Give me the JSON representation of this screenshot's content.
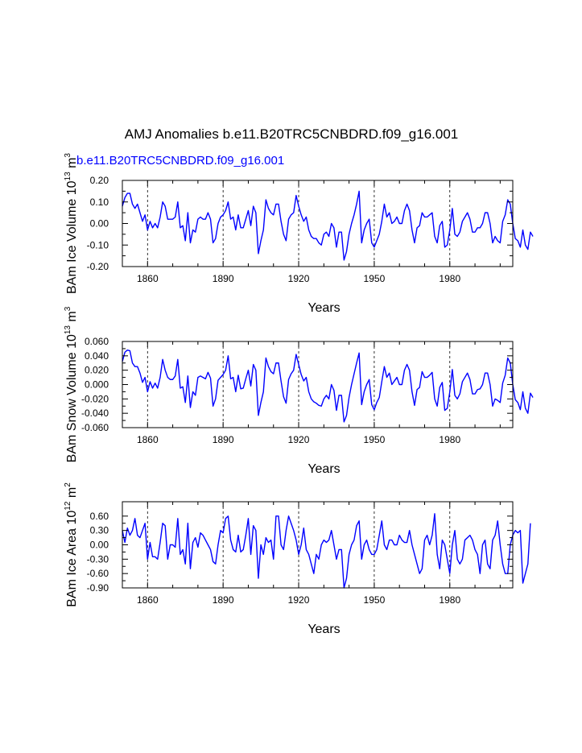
{
  "title": "AMJ Anomalies b.e11.B20TRC5CNBDRD.f09_g16.001",
  "case_label": "b.e11.B20TRC5CNBDRD.f09_g16.001",
  "colors": {
    "line": "#0000ff",
    "case_label": "#0000ff",
    "axis": "#000000"
  },
  "chart_data": [
    {
      "type": "line",
      "ylabel_prefix": "BAm Ice Volume 10",
      "ylabel_exp": "13",
      "ylabel_unit": "m",
      "ylabel_unit_exp": "3",
      "xlabel": "Years",
      "xlim": [
        1850,
        2005
      ],
      "ylim": [
        -0.2,
        0.2
      ],
      "x_ticks": [
        1860,
        1890,
        1920,
        1950,
        1980
      ],
      "x_tick_labels": [
        "1860",
        "1890",
        "1920",
        "1950",
        "1980"
      ],
      "y_ticks": [
        -0.2,
        -0.1,
        0.0,
        0.1,
        0.2
      ],
      "y_tick_labels": [
        "-0.20",
        "-0.10",
        "0.00",
        "0.10",
        "0.20"
      ],
      "vgrid_dashed": [
        1860,
        1890,
        1920,
        1950,
        1980
      ],
      "series": [
        {
          "name": "b.e11.B20TRC5CNBDRD.f09_g16.001",
          "x_start": 1850,
          "values": [
            0.08,
            0.12,
            0.14,
            0.14,
            0.09,
            0.07,
            0.09,
            0.05,
            0.01,
            0.04,
            -0.03,
            0.01,
            -0.02,
            0.0,
            -0.02,
            0.03,
            0.1,
            0.08,
            0.02,
            0.02,
            0.02,
            0.03,
            0.1,
            -0.02,
            -0.01,
            -0.08,
            0.05,
            -0.09,
            -0.03,
            -0.04,
            0.02,
            0.03,
            0.02,
            0.02,
            0.05,
            0.02,
            -0.09,
            -0.07,
            0.0,
            0.03,
            0.04,
            0.06,
            0.1,
            0.02,
            0.03,
            -0.03,
            0.04,
            -0.02,
            -0.02,
            0.02,
            0.06,
            -0.01,
            0.08,
            0.05,
            -0.14,
            -0.08,
            -0.03,
            0.11,
            0.07,
            0.05,
            0.04,
            0.09,
            0.09,
            0.01,
            -0.05,
            -0.08,
            0.02,
            0.04,
            0.05,
            0.13,
            0.08,
            0.04,
            0.01,
            0.03,
            -0.03,
            -0.06,
            -0.07,
            -0.07,
            -0.09,
            -0.1,
            -0.05,
            -0.04,
            -0.06,
            0.0,
            -0.02,
            -0.11,
            -0.04,
            -0.04,
            -0.17,
            -0.13,
            -0.05,
            0.0,
            0.04,
            0.09,
            0.15,
            -0.09,
            -0.03,
            0.0,
            0.02,
            -0.09,
            -0.11,
            -0.08,
            -0.05,
            0.01,
            0.09,
            0.03,
            0.05,
            0.0,
            0.01,
            0.03,
            0.0,
            0.0,
            0.06,
            0.09,
            0.06,
            -0.03,
            -0.09,
            -0.02,
            -0.01,
            0.05,
            0.03,
            0.03,
            0.04,
            0.05,
            -0.06,
            -0.09,
            -0.01,
            0.01,
            -0.11,
            -0.1,
            -0.03,
            0.07,
            -0.05,
            -0.06,
            -0.04,
            0.01,
            0.03,
            0.05,
            0.02,
            -0.04,
            -0.04,
            -0.02,
            -0.02,
            0.0,
            0.05,
            0.05,
            0.0,
            -0.09,
            -0.06,
            -0.08,
            -0.09,
            0.01,
            0.04,
            0.11,
            0.09,
            0.0,
            -0.07,
            -0.08,
            -0.11,
            -0.03,
            -0.1,
            -0.12,
            -0.04,
            -0.06
          ]
        }
      ]
    },
    {
      "type": "line",
      "ylabel_prefix": "BAm Snow Volume 10",
      "ylabel_exp": "13",
      "ylabel_unit": "m",
      "ylabel_unit_exp": "3",
      "xlabel": "Years",
      "xlim": [
        1850,
        2005
      ],
      "ylim": [
        -0.06,
        0.06
      ],
      "x_ticks": [
        1860,
        1890,
        1920,
        1950,
        1980
      ],
      "x_tick_labels": [
        "1860",
        "1890",
        "1920",
        "1950",
        "1980"
      ],
      "y_ticks": [
        -0.06,
        -0.04,
        -0.02,
        0.0,
        0.02,
        0.04,
        0.06
      ],
      "y_tick_labels": [
        "-0.060",
        "-0.040",
        "-0.020",
        "0.000",
        "0.020",
        "0.040",
        "0.060"
      ],
      "vgrid_dashed": [
        1860,
        1890,
        1920,
        1950,
        1980
      ],
      "series": [
        {
          "name": "b.e11.B20TRC5CNBDRD.f09_g16.001",
          "x_start": 1850,
          "values": [
            0.032,
            0.045,
            0.048,
            0.047,
            0.03,
            0.025,
            0.025,
            0.016,
            0.003,
            0.01,
            -0.01,
            0.004,
            -0.005,
            0.002,
            -0.005,
            0.01,
            0.035,
            0.02,
            0.01,
            0.007,
            0.007,
            0.012,
            0.035,
            -0.005,
            -0.003,
            -0.025,
            0.012,
            -0.032,
            -0.01,
            -0.015,
            0.01,
            0.012,
            0.01,
            0.008,
            0.017,
            0.009,
            -0.03,
            -0.02,
            0.006,
            0.01,
            0.014,
            0.02,
            0.04,
            0.008,
            0.01,
            -0.01,
            0.013,
            -0.006,
            -0.005,
            0.008,
            0.02,
            -0.002,
            0.028,
            0.02,
            -0.043,
            -0.025,
            -0.01,
            0.037,
            0.025,
            0.018,
            0.015,
            0.03,
            0.03,
            0.005,
            -0.017,
            -0.026,
            0.007,
            0.015,
            0.02,
            0.042,
            0.028,
            0.014,
            0.005,
            0.01,
            -0.01,
            -0.02,
            -0.024,
            -0.026,
            -0.029,
            -0.03,
            -0.02,
            -0.015,
            -0.02,
            0.0,
            -0.008,
            -0.036,
            -0.015,
            -0.015,
            -0.052,
            -0.043,
            -0.018,
            0.0,
            0.015,
            0.03,
            0.044,
            -0.028,
            -0.01,
            0.0,
            0.007,
            -0.028,
            -0.035,
            -0.025,
            -0.018,
            0.004,
            0.025,
            0.01,
            0.016,
            0.0,
            0.005,
            0.01,
            0.0,
            0.0,
            0.02,
            0.028,
            0.02,
            -0.01,
            -0.029,
            -0.007,
            -0.004,
            0.018,
            0.01,
            0.01,
            0.013,
            0.017,
            -0.02,
            -0.03,
            -0.004,
            0.003,
            -0.036,
            -0.033,
            -0.01,
            0.021,
            -0.015,
            -0.02,
            -0.013,
            0.004,
            0.01,
            0.016,
            0.007,
            -0.013,
            -0.013,
            -0.007,
            -0.006,
            0.0,
            0.016,
            0.016,
            0.0,
            -0.03,
            -0.02,
            -0.022,
            -0.025,
            0.002,
            0.013,
            0.037,
            0.03,
            0.0,
            -0.021,
            -0.025,
            -0.035,
            -0.01,
            -0.033,
            -0.04,
            -0.012,
            -0.018
          ]
        }
      ]
    },
    {
      "type": "line",
      "ylabel_prefix": "BAm Ice Area 10",
      "ylabel_exp": "12",
      "ylabel_unit": "m",
      "ylabel_unit_exp": "2",
      "xlabel": "Years",
      "xlim": [
        1850,
        2005
      ],
      "ylim": [
        -0.9,
        0.9
      ],
      "x_ticks": [
        1860,
        1890,
        1920,
        1950,
        1980
      ],
      "x_tick_labels": [
        "1860",
        "1890",
        "1920",
        "1950",
        "1980"
      ],
      "y_ticks": [
        -0.9,
        -0.6,
        -0.3,
        0.0,
        0.3,
        0.6
      ],
      "y_tick_labels": [
        "-0.90",
        "-0.60",
        "-0.30",
        "0.00",
        "0.30",
        "0.60"
      ],
      "vgrid_dashed": [
        1860,
        1890,
        1920,
        1950,
        1980
      ],
      "series": [
        {
          "name": "b.e11.B20TRC5CNBDRD.f09_g16.001",
          "x_start": 1850,
          "values": [
            0.3,
            0.05,
            0.35,
            0.2,
            0.3,
            0.55,
            0.2,
            0.15,
            0.3,
            0.45,
            -0.3,
            0.05,
            -0.25,
            -0.25,
            -0.3,
            0.05,
            0.45,
            0.4,
            -0.3,
            0.0,
            0.0,
            -0.05,
            0.55,
            -0.2,
            -0.1,
            -0.4,
            0.45,
            -0.5,
            0.05,
            0.15,
            -0.05,
            0.25,
            0.2,
            0.1,
            0.0,
            -0.1,
            -0.35,
            -0.4,
            0.0,
            0.3,
            0.25,
            0.55,
            0.6,
            0.1,
            -0.1,
            -0.15,
            0.2,
            -0.15,
            -0.1,
            0.2,
            0.55,
            -0.2,
            0.4,
            0.3,
            -0.7,
            0.0,
            -0.2,
            0.15,
            0.05,
            0.1,
            -0.3,
            0.6,
            0.6,
            0.0,
            -0.1,
            0.3,
            0.6,
            0.45,
            0.3,
            0.1,
            -0.2,
            0.0,
            0.35,
            -0.1,
            -0.2,
            -0.4,
            -0.6,
            -0.2,
            -0.3,
            0.0,
            0.1,
            0.05,
            0.1,
            0.3,
            0.0,
            -0.3,
            -0.1,
            -0.1,
            -0.9,
            -0.7,
            -0.2,
            0.0,
            0.1,
            0.4,
            0.5,
            -0.3,
            0.0,
            0.1,
            -0.1,
            -0.2,
            -0.2,
            -0.1,
            0.2,
            0.5,
            0.0,
            -0.1,
            0.1,
            0.1,
            0.0,
            0.0,
            0.2,
            0.1,
            0.05,
            0.05,
            0.3,
            0.0,
            -0.2,
            -0.4,
            -0.6,
            -0.5,
            0.1,
            0.2,
            0.0,
            0.2,
            0.65,
            -0.2,
            -0.5,
            0.1,
            0.0,
            -0.3,
            -0.6,
            0.0,
            0.3,
            -0.3,
            -0.4,
            -0.3,
            0.1,
            0.15,
            0.2,
            0.1,
            -0.1,
            -0.2,
            -0.6,
            0.0,
            0.1,
            -0.4,
            -0.5,
            0.1,
            0.2,
            0.5,
            0.0,
            -0.4,
            -0.6,
            -0.6,
            0.0,
            0.2,
            0.3,
            0.25,
            0.3,
            -0.8,
            -0.6,
            -0.4,
            0.45
          ]
        }
      ]
    }
  ]
}
